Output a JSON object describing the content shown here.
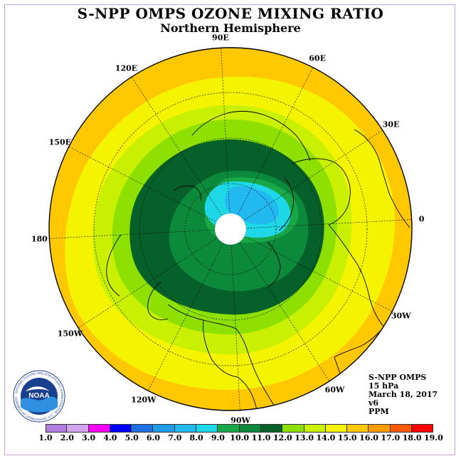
{
  "title": "S-NPP OMPS OZONE MIXING RATIO",
  "subtitle": "Northern Hemisphere",
  "longitude_labels": [
    "90E",
    "60E",
    "30E",
    "0",
    "30W",
    "60W",
    "90W",
    "120W",
    "150W",
    "180",
    "150E",
    "120E"
  ],
  "info": {
    "instrument": "S-NPP OMPS",
    "level": "15 hPa",
    "date": "March 18, 2017",
    "version": "v6",
    "units": "PPM"
  },
  "logo_text": "NOAA",
  "logo_ring_text": "NATIONAL OCEANIC AND ATMOSPHERIC ADMINISTRATION · U.S. DEPARTMENT OF COMMERCE",
  "colorbar": {
    "ticks": [
      "1.0",
      "2.0",
      "3.0",
      "4.0",
      "5.0",
      "6.0",
      "7.0",
      "8.0",
      "9.0",
      "10.0",
      "11.0",
      "12.0",
      "13.0",
      "14.0",
      "15.0",
      "16.0",
      "17.0",
      "18.0",
      "19.0"
    ],
    "colors": [
      "#b27ee3",
      "#d4a6f0",
      "#ff00ff",
      "#0000ff",
      "#1f6fe6",
      "#1f9ce8",
      "#22b8f0",
      "#1ed8e8",
      "#18a848",
      "#0a8a3a",
      "#06602a",
      "#8ee000",
      "#c8f000",
      "#f4f400",
      "#ffc800",
      "#ff9c00",
      "#ff5a00",
      "#ff0000",
      "#8a5a3c"
    ]
  },
  "map_colors": {
    "level_14_15": "#ffc800",
    "level_13_14": "#f4f400",
    "level_12_13": "#c8f000",
    "level_11_12": "#8ee000",
    "level_10_11": "#06602a",
    "level_9_10": "#0a8a3a",
    "level_8_9": "#18a848",
    "level_7_8": "#1ed8e8",
    "level_6_7": "#22b8f0",
    "polar_gap": "#ffffff"
  }
}
